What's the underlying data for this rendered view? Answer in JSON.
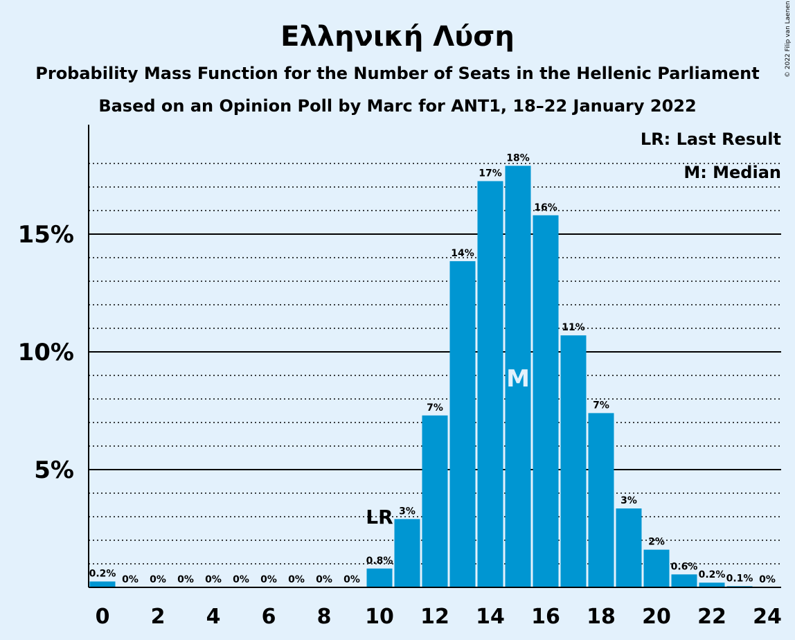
{
  "chart_data": {
    "type": "bar",
    "title": "Ελληνική Λύση",
    "subtitle": "Probability Mass Function for the Number of Seats in the Hellenic Parliament",
    "subtitle2": "Based on an Opinion Poll by Marc for ANT1, 18–22 January 2022",
    "copyright": "© 2022 Filip van Laenen",
    "x": [
      0,
      1,
      2,
      3,
      4,
      5,
      6,
      7,
      8,
      9,
      10,
      11,
      12,
      13,
      14,
      15,
      16,
      17,
      18,
      19,
      20,
      21,
      22,
      23,
      24
    ],
    "values": [
      0.25,
      0,
      0,
      0,
      0,
      0,
      0,
      0,
      0,
      0,
      0.8,
      2.9,
      7.3,
      13.85,
      17.25,
      17.9,
      15.8,
      10.7,
      7.4,
      3.35,
      1.6,
      0.55,
      0.2,
      0.05,
      0
    ],
    "bar_labels": [
      "0.2%",
      "0%",
      "0%",
      "0%",
      "0%",
      "0%",
      "0%",
      "0%",
      "0%",
      "0%",
      "0.8%",
      "3%",
      "7%",
      "14%",
      "17%",
      "18%",
      "16%",
      "11%",
      "7%",
      "3%",
      "2%",
      "0.6%",
      "0.2%",
      "0.1%",
      "0%"
    ],
    "x_ticks": [
      "0",
      "2",
      "4",
      "6",
      "8",
      "10",
      "12",
      "14",
      "16",
      "18",
      "20",
      "22",
      "24"
    ],
    "y_ticks": [
      "5%",
      "10%",
      "15%"
    ],
    "y_tick_values": [
      5,
      10,
      15
    ],
    "ylim": [
      0,
      19.6
    ],
    "last_result": 10,
    "last_result_label": "LR",
    "median": 15,
    "median_label": "M",
    "legend": [
      "LR: Last Result",
      "M: Median"
    ],
    "legend_position": "top-right",
    "colors": {
      "bar": "#0096d2",
      "background": "#e3f1fc",
      "axis": "#000000"
    }
  }
}
